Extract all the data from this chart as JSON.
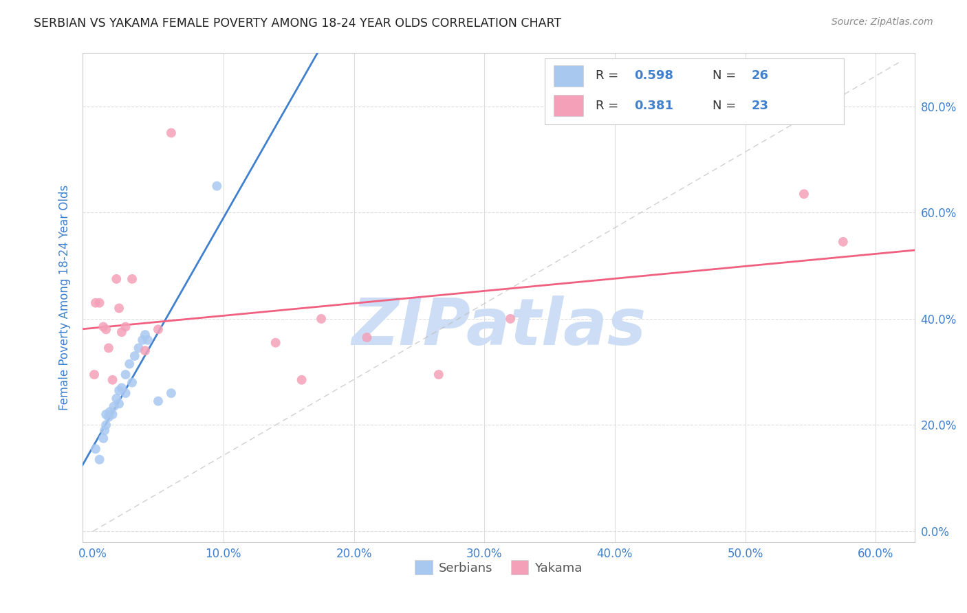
{
  "title": "SERBIAN VS YAKAMA FEMALE POVERTY AMONG 18-24 YEAR OLDS CORRELATION CHART",
  "source": "Source: ZipAtlas.com",
  "ylabel": "Female Poverty Among 18-24 Year Olds",
  "legend_label_serbian": "Serbians",
  "legend_label_yakama": "Yakama",
  "legend_R_serbian": "0.598",
  "legend_N_serbian": "26",
  "legend_R_yakama": "0.381",
  "legend_N_yakama": "23",
  "xlim": [
    -0.008,
    0.63
  ],
  "ylim": [
    -0.02,
    0.9
  ],
  "xlabel_tick_vals": [
    0.0,
    0.1,
    0.2,
    0.3,
    0.4,
    0.5,
    0.6
  ],
  "ylabel_tick_vals": [
    0.0,
    0.2,
    0.4,
    0.6,
    0.8
  ],
  "xlabel_ticks": [
    "0.0%",
    "10.0%",
    "20.0%",
    "30.0%",
    "40.0%",
    "50.0%",
    "60.0%"
  ],
  "ylabel_ticks": [
    "0.0%",
    "20.0%",
    "40.0%",
    "60.0%",
    "80.0%"
  ],
  "serbian_color": "#a8c8f0",
  "yakama_color": "#f4a0b8",
  "trend_serbian_color": "#4080cc",
  "trend_yakama_color": "#f06080",
  "diagonal_color": "#bbbbbb",
  "watermark_color": "#ccddf5",
  "background_color": "#ffffff",
  "grid_color": "#dddddd",
  "title_color": "#222222",
  "tick_label_color": "#4080cc",
  "R_color": "#4080cc",
  "source_color": "#888888",
  "ylabel_color": "#4080cc",
  "serbian_x": [
    0.002,
    0.005,
    0.008,
    0.009,
    0.01,
    0.01,
    0.012,
    0.013,
    0.015,
    0.016,
    0.018,
    0.02,
    0.02,
    0.022,
    0.025,
    0.025,
    0.028,
    0.03,
    0.032,
    0.035,
    0.038,
    0.04,
    0.042,
    0.05,
    0.06,
    0.095
  ],
  "serbian_y": [
    0.155,
    0.135,
    0.175,
    0.19,
    0.2,
    0.22,
    0.215,
    0.225,
    0.22,
    0.235,
    0.25,
    0.24,
    0.265,
    0.27,
    0.26,
    0.295,
    0.315,
    0.28,
    0.33,
    0.345,
    0.36,
    0.37,
    0.36,
    0.245,
    0.26,
    0.65
  ],
  "yakama_x": [
    0.001,
    0.002,
    0.005,
    0.008,
    0.01,
    0.012,
    0.015,
    0.018,
    0.02,
    0.022,
    0.025,
    0.03,
    0.04,
    0.05,
    0.06,
    0.14,
    0.16,
    0.175,
    0.21,
    0.265,
    0.32,
    0.545,
    0.575
  ],
  "yakama_y": [
    0.295,
    0.43,
    0.43,
    0.385,
    0.38,
    0.345,
    0.285,
    0.475,
    0.42,
    0.375,
    0.385,
    0.475,
    0.34,
    0.38,
    0.75,
    0.355,
    0.285,
    0.4,
    0.365,
    0.295,
    0.4,
    0.635,
    0.545
  ],
  "scatter_size": 100
}
